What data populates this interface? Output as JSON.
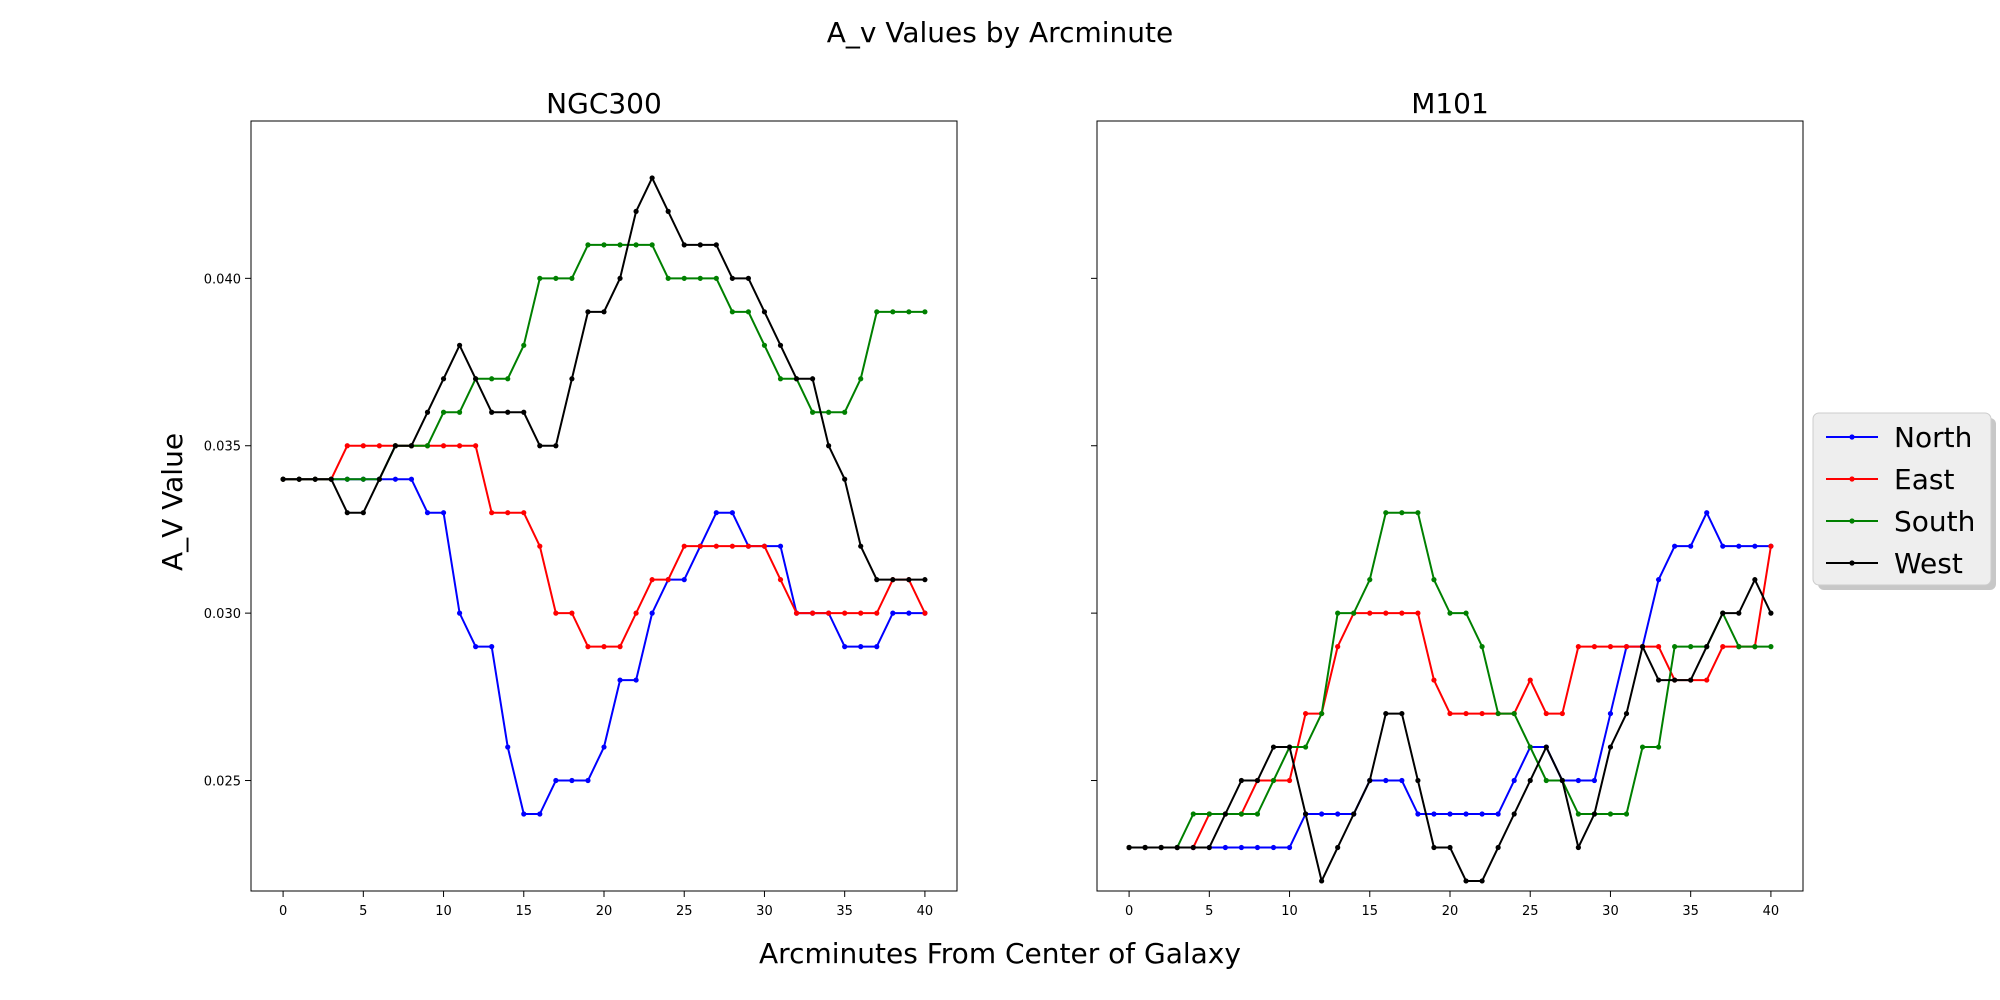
{
  "figure": {
    "title": "A_v Values by Arcminute",
    "xlabel": "Arcminutes From Center of Galaxy",
    "ylabel": "A_V Value"
  },
  "legend": {
    "placement": "center-right",
    "entries": [
      {
        "name": "North",
        "color": "#0000ff"
      },
      {
        "name": "East",
        "color": "#ff0000"
      },
      {
        "name": "South",
        "color": "#008000"
      },
      {
        "name": "West",
        "color": "#000000"
      }
    ]
  },
  "chart_data": [
    {
      "type": "line",
      "title": "NGC300",
      "x": [
        0,
        1,
        2,
        3,
        4,
        5,
        6,
        7,
        8,
        9,
        10,
        11,
        12,
        13,
        14,
        15,
        16,
        17,
        18,
        19,
        20,
        21,
        22,
        23,
        24,
        25,
        26,
        27,
        28,
        29,
        30,
        31,
        32,
        33,
        34,
        35,
        36,
        37,
        38,
        39,
        40
      ],
      "xlim": [
        -2,
        42
      ],
      "ylim": [
        0.0217,
        0.0447
      ],
      "xticks": [
        0,
        5,
        10,
        15,
        20,
        25,
        30,
        35,
        40
      ],
      "yticks": [
        0.025,
        0.03,
        0.035,
        0.04
      ],
      "ytick_labels": [
        "0.025",
        "0.030",
        "0.035",
        "0.040"
      ],
      "grid": false,
      "series": [
        {
          "name": "North",
          "color": "#0000ff",
          "values": [
            0.034,
            0.034,
            0.034,
            0.034,
            0.034,
            0.034,
            0.034,
            0.034,
            0.034,
            0.033,
            0.033,
            0.03,
            0.029,
            0.029,
            0.026,
            0.024,
            0.024,
            0.025,
            0.025,
            0.025,
            0.026,
            0.028,
            0.028,
            0.03,
            0.031,
            0.031,
            0.032,
            0.033,
            0.033,
            0.032,
            0.032,
            0.032,
            0.03,
            0.03,
            0.03,
            0.029,
            0.029,
            0.029,
            0.03,
            0.03,
            0.03
          ]
        },
        {
          "name": "East",
          "color": "#ff0000",
          "values": [
            0.034,
            0.034,
            0.034,
            0.034,
            0.035,
            0.035,
            0.035,
            0.035,
            0.035,
            0.035,
            0.035,
            0.035,
            0.035,
            0.033,
            0.033,
            0.033,
            0.032,
            0.03,
            0.03,
            0.029,
            0.029,
            0.029,
            0.03,
            0.031,
            0.031,
            0.032,
            0.032,
            0.032,
            0.032,
            0.032,
            0.032,
            0.031,
            0.03,
            0.03,
            0.03,
            0.03,
            0.03,
            0.03,
            0.031,
            0.031,
            0.03
          ]
        },
        {
          "name": "South",
          "color": "#008000",
          "values": [
            0.034,
            0.034,
            0.034,
            0.034,
            0.034,
            0.034,
            0.034,
            0.035,
            0.035,
            0.035,
            0.036,
            0.036,
            0.037,
            0.037,
            0.037,
            0.038,
            0.04,
            0.04,
            0.04,
            0.041,
            0.041,
            0.041,
            0.041,
            0.041,
            0.04,
            0.04,
            0.04,
            0.04,
            0.039,
            0.039,
            0.038,
            0.037,
            0.037,
            0.036,
            0.036,
            0.036,
            0.037,
            0.039,
            0.039,
            0.039,
            0.039
          ]
        },
        {
          "name": "West",
          "color": "#000000",
          "values": [
            0.034,
            0.034,
            0.034,
            0.034,
            0.033,
            0.033,
            0.034,
            0.035,
            0.035,
            0.036,
            0.037,
            0.038,
            0.037,
            0.036,
            0.036,
            0.036,
            0.035,
            0.035,
            0.037,
            0.039,
            0.039,
            0.04,
            0.042,
            0.043,
            0.042,
            0.041,
            0.041,
            0.041,
            0.04,
            0.04,
            0.039,
            0.038,
            0.037,
            0.037,
            0.035,
            0.034,
            0.032,
            0.031,
            0.031,
            0.031,
            0.031
          ]
        }
      ]
    },
    {
      "type": "line",
      "title": "M101",
      "x": [
        0,
        1,
        2,
        3,
        4,
        5,
        6,
        7,
        8,
        9,
        10,
        11,
        12,
        13,
        14,
        15,
        16,
        17,
        18,
        19,
        20,
        21,
        22,
        23,
        24,
        25,
        26,
        27,
        28,
        29,
        30,
        31,
        32,
        33,
        34,
        35,
        36,
        37,
        38,
        39,
        40
      ],
      "xlim": [
        -2,
        42
      ],
      "ylim": [
        0.0217,
        0.0447
      ],
      "xticks": [
        0,
        5,
        10,
        15,
        20,
        25,
        30,
        35,
        40
      ],
      "yticks": [
        0.025,
        0.03,
        0.035,
        0.04
      ],
      "ytick_labels": [],
      "grid": false,
      "series": [
        {
          "name": "North",
          "color": "#0000ff",
          "values": [
            0.023,
            0.023,
            0.023,
            0.023,
            0.023,
            0.023,
            0.023,
            0.023,
            0.023,
            0.023,
            0.023,
            0.024,
            0.024,
            0.024,
            0.024,
            0.025,
            0.025,
            0.025,
            0.024,
            0.024,
            0.024,
            0.024,
            0.024,
            0.024,
            0.025,
            0.026,
            0.026,
            0.025,
            0.025,
            0.025,
            0.027,
            0.029,
            0.029,
            0.031,
            0.032,
            0.032,
            0.033,
            0.032,
            0.032,
            0.032,
            0.032
          ]
        },
        {
          "name": "East",
          "color": "#ff0000",
          "values": [
            0.023,
            0.023,
            0.023,
            0.023,
            0.023,
            0.024,
            0.024,
            0.024,
            0.025,
            0.025,
            0.025,
            0.027,
            0.027,
            0.029,
            0.03,
            0.03,
            0.03,
            0.03,
            0.03,
            0.028,
            0.027,
            0.027,
            0.027,
            0.027,
            0.027,
            0.028,
            0.027,
            0.027,
            0.029,
            0.029,
            0.029,
            0.029,
            0.029,
            0.029,
            0.028,
            0.028,
            0.028,
            0.029,
            0.029,
            0.029,
            0.032
          ]
        },
        {
          "name": "South",
          "color": "#008000",
          "values": [
            0.023,
            0.023,
            0.023,
            0.023,
            0.024,
            0.024,
            0.024,
            0.024,
            0.024,
            0.025,
            0.026,
            0.026,
            0.027,
            0.03,
            0.03,
            0.031,
            0.033,
            0.033,
            0.033,
            0.031,
            0.03,
            0.03,
            0.029,
            0.027,
            0.027,
            0.026,
            0.025,
            0.025,
            0.024,
            0.024,
            0.024,
            0.024,
            0.026,
            0.026,
            0.029,
            0.029,
            0.029,
            0.03,
            0.029,
            0.029,
            0.029
          ]
        },
        {
          "name": "West",
          "color": "#000000",
          "values": [
            0.023,
            0.023,
            0.023,
            0.023,
            0.023,
            0.023,
            0.024,
            0.025,
            0.025,
            0.026,
            0.026,
            0.024,
            0.022,
            0.023,
            0.024,
            0.025,
            0.027,
            0.027,
            0.025,
            0.023,
            0.023,
            0.022,
            0.022,
            0.023,
            0.024,
            0.025,
            0.026,
            0.025,
            0.023,
            0.024,
            0.026,
            0.027,
            0.029,
            0.028,
            0.028,
            0.028,
            0.029,
            0.03,
            0.03,
            0.031,
            0.03
          ]
        }
      ]
    }
  ]
}
